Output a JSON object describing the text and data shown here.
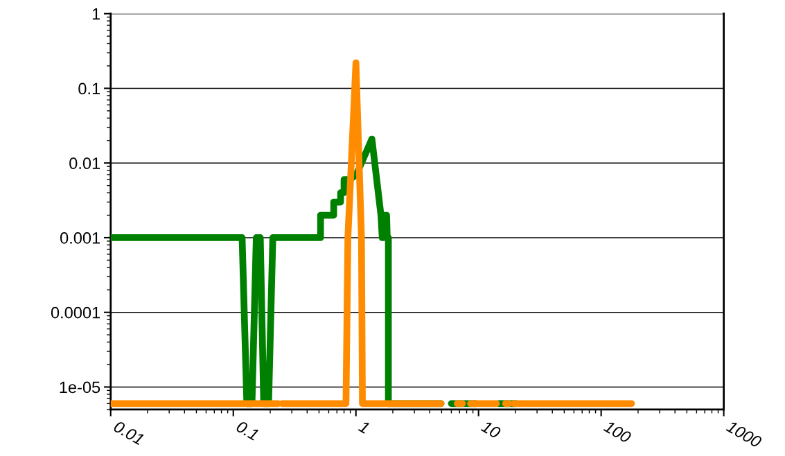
{
  "chart_data": {
    "type": "line",
    "log": "xy",
    "grid": "y",
    "xlim": [
      0.01,
      1000
    ],
    "xticks": [
      0.01,
      0.1,
      1,
      10,
      100,
      1000
    ],
    "ylim": [
      5e-06,
      1
    ],
    "yticks": [
      1e-05,
      0.0001,
      0.001,
      0.01,
      0.1,
      1
    ],
    "line_style": "solid",
    "marker": "none",
    "series": [
      {
        "color": "#008000",
        "x": [
          0.01,
          0.118,
          0.129,
          0.142,
          0.154,
          0.166,
          0.177,
          0.194,
          0.21,
          0.515,
          0.515,
          0.659,
          0.659,
          0.75,
          0.75,
          0.8,
          0.8,
          0.89,
          1.01,
          1.35,
          1.6,
          1.64,
          1.68,
          1.7,
          1.78,
          1.8,
          1.84,
          1.84,
          4.95,
          5.5,
          6.0,
          9.5,
          12,
          14.6,
          20.2
        ],
        "values": [
          0.001,
          0.001,
          6e-06,
          6e-06,
          0.001,
          0.001,
          6e-06,
          6e-06,
          0.001,
          0.001,
          0.002,
          0.002,
          0.003,
          0.003,
          0.004,
          0.004,
          0.006,
          0.006,
          0.007,
          0.021,
          0.002,
          0.001,
          0.001,
          0.002,
          0.002,
          0.001,
          0.001,
          6e-06,
          6e-06,
          null,
          6e-06,
          6e-06,
          null,
          6e-06,
          6e-06
        ]
      },
      {
        "color": "#ff8c00",
        "x": [
          0.01,
          0.232,
          0.24,
          0.25,
          0.83,
          0.86,
          1.0,
          1.11,
          1.13,
          4.95,
          5.5,
          6.7,
          7.4,
          8,
          8.6,
          14.0,
          15,
          16.6,
          17.8,
          18.5,
          19.5,
          177
        ],
        "values": [
          6e-06,
          6e-06,
          null,
          6e-06,
          6e-06,
          0.001,
          0.22,
          0.001,
          6e-06,
          6e-06,
          null,
          6e-06,
          6e-06,
          null,
          6e-06,
          6e-06,
          null,
          6e-06,
          6e-06,
          null,
          6e-06,
          6e-06
        ]
      }
    ]
  }
}
